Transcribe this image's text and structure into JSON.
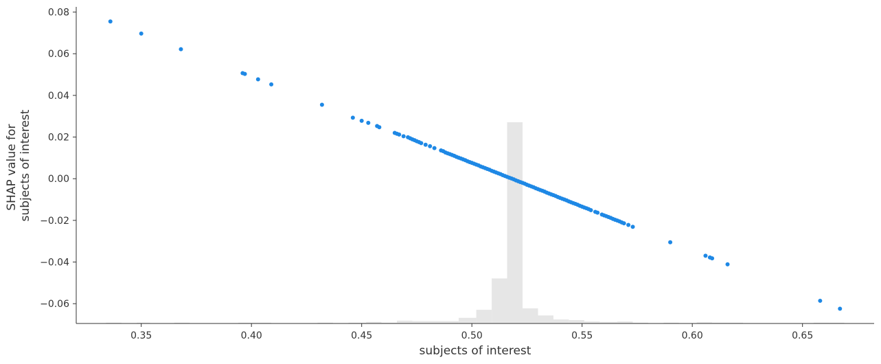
{
  "chart_data": {
    "type": "scatter",
    "title": "",
    "xlabel": "subjects of interest",
    "ylabel_lines": [
      "SHAP value for",
      "subjects of interest"
    ],
    "xlim": [
      0.3205,
      0.6825
    ],
    "ylim": [
      -0.0695,
      0.0825
    ],
    "xticks": [
      0.35,
      0.4,
      0.45,
      0.5,
      0.55,
      0.6,
      0.65
    ],
    "xtick_labels": [
      "0.35",
      "0.40",
      "0.45",
      "0.50",
      "0.55",
      "0.60",
      "0.65"
    ],
    "yticks": [
      -0.06,
      -0.04,
      -0.02,
      0.0,
      0.02,
      0.04,
      0.06,
      0.08
    ],
    "ytick_labels": [
      "−0.06",
      "−0.04",
      "−0.02",
      "0.00",
      "0.02",
      "0.04",
      "0.06",
      "0.08"
    ],
    "grid": false,
    "legend": "none",
    "point_color": "#1e88e5",
    "histogram_color": "#e6e6e6",
    "histogram": {
      "description_units": "relative bar height as fraction of max",
      "bins": [
        {
          "x0": 0.334,
          "x1": 0.341,
          "h": 0.004
        },
        {
          "x0": 0.348,
          "x1": 0.354,
          "h": 0.004
        },
        {
          "x0": 0.365,
          "x1": 0.372,
          "h": 0.004
        },
        {
          "x0": 0.394,
          "x1": 0.409,
          "h": 0.004
        },
        {
          "x0": 0.43,
          "x1": 0.437,
          "h": 0.004
        },
        {
          "x0": 0.444,
          "x1": 0.452,
          "h": 0.004
        },
        {
          "x0": 0.452,
          "x1": 0.459,
          "h": 0.008
        },
        {
          "x0": 0.459,
          "x1": 0.466,
          "h": 0.004
        },
        {
          "x0": 0.466,
          "x1": 0.473,
          "h": 0.014
        },
        {
          "x0": 0.473,
          "x1": 0.48,
          "h": 0.012
        },
        {
          "x0": 0.48,
          "x1": 0.487,
          "h": 0.012
        },
        {
          "x0": 0.487,
          "x1": 0.494,
          "h": 0.012
        },
        {
          "x0": 0.494,
          "x1": 0.502,
          "h": 0.028
        },
        {
          "x0": 0.502,
          "x1": 0.509,
          "h": 0.068
        },
        {
          "x0": 0.509,
          "x1": 0.516,
          "h": 0.224
        },
        {
          "x0": 0.516,
          "x1": 0.523,
          "h": 1.0
        },
        {
          "x0": 0.523,
          "x1": 0.53,
          "h": 0.075
        },
        {
          "x0": 0.53,
          "x1": 0.537,
          "h": 0.04
        },
        {
          "x0": 0.537,
          "x1": 0.544,
          "h": 0.02
        },
        {
          "x0": 0.544,
          "x1": 0.551,
          "h": 0.017
        },
        {
          "x0": 0.551,
          "x1": 0.558,
          "h": 0.01
        },
        {
          "x0": 0.558,
          "x1": 0.566,
          "h": 0.008
        },
        {
          "x0": 0.566,
          "x1": 0.573,
          "h": 0.01
        },
        {
          "x0": 0.573,
          "x1": 0.58,
          "h": 0.004
        },
        {
          "x0": 0.587,
          "x1": 0.594,
          "h": 0.004
        },
        {
          "x0": 0.602,
          "x1": 0.609,
          "h": 0.006
        },
        {
          "x0": 0.609,
          "x1": 0.616,
          "h": 0.004
        },
        {
          "x0": 0.616,
          "x1": 0.623,
          "h": 0.004
        },
        {
          "x0": 0.655,
          "x1": 0.662,
          "h": 0.004
        },
        {
          "x0": 0.662,
          "x1": 0.669,
          "h": 0.004
        }
      ]
    },
    "series": [
      {
        "x": [
          0.336,
          0.35,
          0.368,
          0.396,
          0.397,
          0.403,
          0.409,
          0.432,
          0.446,
          0.45,
          0.453,
          0.457,
          0.458,
          0.465,
          0.466,
          0.467,
          0.469,
          0.471,
          0.472,
          0.473,
          0.474,
          0.475,
          0.476,
          0.477,
          0.479,
          0.481,
          0.483,
          0.486,
          0.487,
          0.488,
          0.489,
          0.49,
          0.491,
          0.492,
          0.493,
          0.494,
          0.495,
          0.496,
          0.497,
          0.498,
          0.499,
          0.5,
          0.501,
          0.502,
          0.503,
          0.504,
          0.505,
          0.506,
          0.507,
          0.508,
          0.509,
          0.51,
          0.511,
          0.512,
          0.513,
          0.514,
          0.515,
          0.516,
          0.517,
          0.518,
          0.519,
          0.52,
          0.521,
          0.522,
          0.523,
          0.524,
          0.525,
          0.526,
          0.527,
          0.528,
          0.529,
          0.53,
          0.531,
          0.532,
          0.533,
          0.534,
          0.535,
          0.536,
          0.537,
          0.538,
          0.539,
          0.54,
          0.541,
          0.542,
          0.543,
          0.544,
          0.545,
          0.546,
          0.547,
          0.548,
          0.549,
          0.55,
          0.551,
          0.552,
          0.553,
          0.554,
          0.556,
          0.557,
          0.559,
          0.56,
          0.561,
          0.562,
          0.563,
          0.564,
          0.565,
          0.566,
          0.567,
          0.568,
          0.569,
          0.571,
          0.573,
          0.59,
          0.606,
          0.608,
          0.609,
          0.616,
          0.658,
          0.667
        ],
        "y": [
          0.0755,
          0.0697,
          0.0622,
          0.0507,
          0.0503,
          0.0477,
          0.0453,
          0.0355,
          0.0293,
          0.0278,
          0.0268,
          0.0253,
          0.0247,
          0.022,
          0.0216,
          0.0212,
          0.0204,
          0.0199,
          0.0194,
          0.0189,
          0.0185,
          0.018,
          0.0176,
          0.0171,
          0.0163,
          0.0156,
          0.0147,
          0.0136,
          0.0132,
          0.0126,
          0.0122,
          0.0118,
          0.0114,
          0.011,
          0.0105,
          0.0101,
          0.0097,
          0.0093,
          0.0089,
          0.0084,
          0.008,
          0.0076,
          0.0072,
          0.0068,
          0.0064,
          0.0059,
          0.0055,
          0.0051,
          0.0047,
          0.0043,
          0.0038,
          0.0034,
          0.003,
          0.0026,
          0.0022,
          0.0017,
          0.0013,
          0.0009,
          0.0005,
          0.0001,
          -0.0003,
          -0.0008,
          -0.0012,
          -0.0016,
          -0.002,
          -0.0024,
          -0.0029,
          -0.0033,
          -0.0037,
          -0.0041,
          -0.0046,
          -0.005,
          -0.0054,
          -0.0058,
          -0.0062,
          -0.0067,
          -0.0071,
          -0.0075,
          -0.0079,
          -0.0083,
          -0.0088,
          -0.0092,
          -0.0096,
          -0.01,
          -0.0104,
          -0.0109,
          -0.0113,
          -0.0117,
          -0.0121,
          -0.0125,
          -0.013,
          -0.0134,
          -0.0138,
          -0.0142,
          -0.0146,
          -0.0151,
          -0.0159,
          -0.0163,
          -0.0172,
          -0.0176,
          -0.018,
          -0.0184,
          -0.0188,
          -0.0193,
          -0.0197,
          -0.0201,
          -0.0205,
          -0.021,
          -0.0214,
          -0.0222,
          -0.0231,
          -0.0305,
          -0.037,
          -0.0378,
          -0.0382,
          -0.0411,
          -0.0586,
          -0.0624
        ]
      }
    ]
  }
}
